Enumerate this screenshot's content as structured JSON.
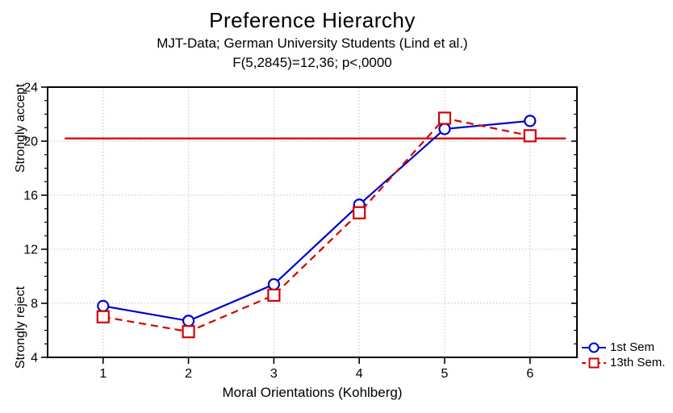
{
  "header": {
    "title": "Preference Hierarchy",
    "subtitle1": "MJT-Data; German University Students (Lind et al.)",
    "subtitle2": "F(5,2845)=12,36; p<,0000"
  },
  "chart_data": {
    "type": "line",
    "title": "Preference Hierarchy",
    "subtitle": "MJT-Data; German University Students (Lind et al.); F(5,2845)=12,36; p<,0000",
    "x": [
      1,
      2,
      3,
      4,
      5,
      6
    ],
    "series": [
      {
        "name": "1st Sem",
        "values": [
          7.8,
          6.7,
          9.4,
          15.3,
          20.9,
          21.5
        ],
        "color": "#0000cc",
        "marker": "circle",
        "line_style": "solid"
      },
      {
        "name": "13th Sem.",
        "values": [
          7.0,
          5.9,
          8.6,
          14.7,
          21.7,
          20.4
        ],
        "color": "#d40000",
        "marker": "square",
        "line_style": "dashed"
      }
    ],
    "reference_line": {
      "y": 20.2,
      "color": "#d40000",
      "style": "solid"
    },
    "xlabel": "Moral Orientations (Kohlberg)",
    "ylabel_top": "Strongly accept",
    "ylabel_bottom": "Strongly reject",
    "xlim": [
      0.35,
      6.55
    ],
    "ylim": [
      4,
      24
    ],
    "xticks": [
      1,
      2,
      3,
      4,
      5,
      6
    ],
    "yticks": [
      4,
      8,
      12,
      16,
      20,
      24
    ],
    "minor_tick_step_y": 1,
    "grid": "dotted",
    "grid_color": "#c4c4c4",
    "frame_color": "#000000",
    "legend_position": "bottom-right-outside"
  }
}
